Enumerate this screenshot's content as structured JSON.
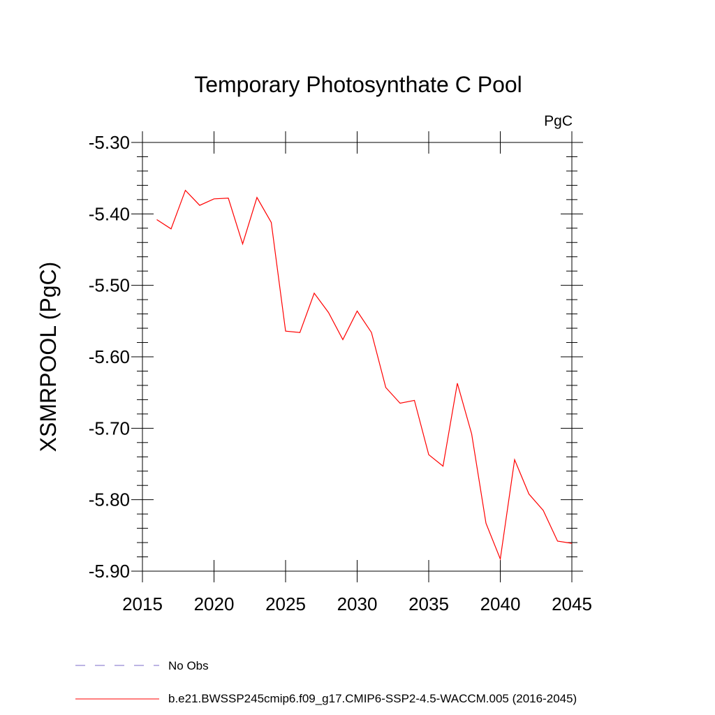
{
  "chart_data": {
    "type": "line",
    "title": "Temporary Photosynthate C Pool",
    "units": "PgC",
    "xlabel": "",
    "ylabel": "XSMRPOOL  (PgC)",
    "xlim": [
      2015,
      2045
    ],
    "ylim": [
      -5.9,
      -5.3
    ],
    "x_ticks": [
      2015,
      2020,
      2025,
      2030,
      2035,
      2040,
      2045
    ],
    "x_tick_labels": [
      "2015",
      "2020",
      "2025",
      "2030",
      "2035",
      "2040",
      "2045"
    ],
    "y_ticks": [
      -5.3,
      -5.4,
      -5.5,
      -5.6,
      -5.7,
      -5.8,
      -5.9
    ],
    "y_tick_labels": [
      "-5.30",
      "-5.40",
      "-5.50",
      "-5.60",
      "-5.70",
      "-5.80",
      "-5.90"
    ],
    "grid": false,
    "series": [
      {
        "name": "b.e21.BWSSP245cmip6.f09_g17.CMIP6-SSP2-4.5-WACCM.005 (2016-2045)",
        "color": "#ff0000",
        "style": "solid",
        "x": [
          2016,
          2017,
          2018,
          2019,
          2020,
          2021,
          2022,
          2023,
          2024,
          2025,
          2026,
          2027,
          2028,
          2029,
          2030,
          2031,
          2032,
          2033,
          2034,
          2035,
          2036,
          2037,
          2038,
          2039,
          2040,
          2041,
          2042,
          2043,
          2044,
          2045
        ],
        "y": [
          -5.408,
          -5.421,
          -5.367,
          -5.388,
          -5.379,
          -5.378,
          -5.442,
          -5.377,
          -5.412,
          -5.564,
          -5.566,
          -5.511,
          -5.538,
          -5.576,
          -5.536,
          -5.566,
          -5.643,
          -5.665,
          -5.661,
          -5.737,
          -5.753,
          -5.637,
          -5.708,
          -5.833,
          -5.883,
          -5.744,
          -5.792,
          -5.815,
          -5.858,
          -5.861
        ]
      }
    ],
    "legend": {
      "placement": "bottom-left",
      "entries": [
        {
          "label": "No Obs",
          "color": "#7b68c8",
          "style": "dashed"
        },
        {
          "label": "b.e21.BWSSP245cmip6.f09_g17.CMIP6-SSP2-4.5-WACCM.005 (2016-2045)",
          "color": "#ff0000",
          "style": "solid"
        }
      ]
    }
  }
}
